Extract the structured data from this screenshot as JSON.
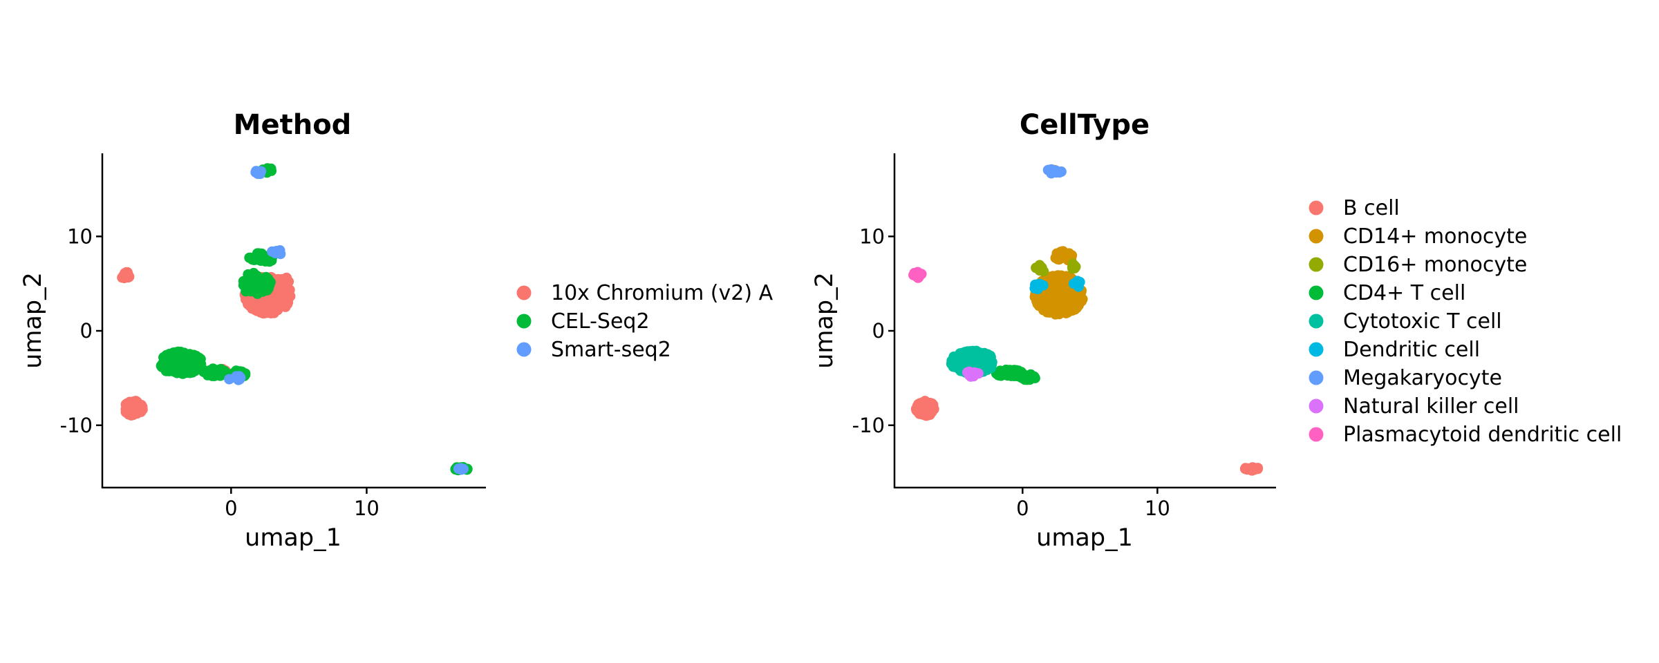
{
  "chart_data": [
    {
      "type": "scatter",
      "title": "Method",
      "xlabel": "umap_1",
      "ylabel": "umap_2",
      "xlim": [
        -9.5,
        18.8
      ],
      "ylim": [
        -16.6,
        18.8
      ],
      "xticks": [
        0,
        10
      ],
      "yticks": [
        -10,
        0,
        10
      ],
      "grid": false,
      "legend_position": "right",
      "series": [
        {
          "name": "10x Chromium (v2) A",
          "color": "#F8766D",
          "clusters": [
            {
              "cx": -7.8,
              "cy": 5.9,
              "rx": 0.35,
              "ry": 0.35,
              "n": 14
            },
            {
              "cx": 2.7,
              "cy": 3.8,
              "rx": 1.7,
              "ry": 2.0,
              "n": 420
            },
            {
              "cx": -7.2,
              "cy": -8.2,
              "rx": 0.7,
              "ry": 0.8,
              "n": 90
            },
            {
              "cx": -3.2,
              "cy": -3.4,
              "rx": 1.0,
              "ry": 0.7,
              "n": 20
            },
            {
              "cx": -0.5,
              "cy": -4.3,
              "rx": 0.5,
              "ry": 0.3,
              "n": 6
            },
            {
              "cx": 3.9,
              "cy": 5.3,
              "rx": 0.4,
              "ry": 0.4,
              "n": 10
            }
          ]
        },
        {
          "name": "CEL-Seq2",
          "color": "#00BA38",
          "clusters": [
            {
              "cx": -3.7,
              "cy": -3.4,
              "rx": 1.6,
              "ry": 1.2,
              "n": 220
            },
            {
              "cx": -1.2,
              "cy": -4.4,
              "rx": 0.9,
              "ry": 0.4,
              "n": 50
            },
            {
              "cx": 0.5,
              "cy": -4.6,
              "rx": 0.6,
              "ry": 0.4,
              "n": 30
            },
            {
              "cx": 2.7,
              "cy": 17.0,
              "rx": 0.4,
              "ry": 0.25,
              "n": 12
            },
            {
              "cx": 2.2,
              "cy": 7.7,
              "rx": 0.9,
              "ry": 0.6,
              "n": 25
            },
            {
              "cx": 17.0,
              "cy": -14.6,
              "rx": 0.5,
              "ry": 0.2,
              "n": 16
            },
            {
              "cx": 1.8,
              "cy": 5.0,
              "rx": 1.2,
              "ry": 1.2,
              "n": 30
            }
          ]
        },
        {
          "name": "Smart-seq2",
          "color": "#619CFF",
          "clusters": [
            {
              "cx": 2.0,
              "cy": 16.8,
              "rx": 0.3,
              "ry": 0.25,
              "n": 8
            },
            {
              "cx": 3.4,
              "cy": 8.3,
              "rx": 0.4,
              "ry": 0.3,
              "n": 8
            },
            {
              "cx": 0.3,
              "cy": -5.0,
              "rx": 0.5,
              "ry": 0.3,
              "n": 8
            },
            {
              "cx": 16.9,
              "cy": -14.7,
              "rx": 0.3,
              "ry": 0.15,
              "n": 4
            }
          ]
        }
      ]
    },
    {
      "type": "scatter",
      "title": "CellType",
      "xlabel": "umap_1",
      "ylabel": "umap_2",
      "xlim": [
        -9.5,
        18.8
      ],
      "ylim": [
        -16.6,
        18.8
      ],
      "xticks": [
        0,
        10
      ],
      "yticks": [
        -10,
        0,
        10
      ],
      "grid": false,
      "legend_position": "right",
      "series": [
        {
          "name": "B cell",
          "color": "#F8766D",
          "clusters": [
            {
              "cx": -7.2,
              "cy": -8.2,
              "rx": 0.7,
              "ry": 0.8,
              "n": 90
            },
            {
              "cx": 17.0,
              "cy": -14.6,
              "rx": 0.5,
              "ry": 0.2,
              "n": 16
            }
          ]
        },
        {
          "name": "CD14+ monocyte",
          "color": "#D39200",
          "clusters": [
            {
              "cx": 2.7,
              "cy": 3.8,
              "rx": 1.8,
              "ry": 2.1,
              "n": 420
            },
            {
              "cx": 3.0,
              "cy": 7.9,
              "rx": 0.7,
              "ry": 0.6,
              "n": 20
            },
            {
              "cx": -3.0,
              "cy": -3.0,
              "rx": 0.6,
              "ry": 0.5,
              "n": 10
            },
            {
              "cx": 2.3,
              "cy": 16.9,
              "rx": 0.2,
              "ry": 0.15,
              "n": 3
            }
          ]
        },
        {
          "name": "CD16+ monocyte",
          "color": "#93AA00",
          "clusters": [
            {
              "cx": 1.3,
              "cy": 6.6,
              "rx": 0.4,
              "ry": 0.4,
              "n": 12
            },
            {
              "cx": 3.8,
              "cy": 6.8,
              "rx": 0.3,
              "ry": 0.3,
              "n": 6
            }
          ]
        },
        {
          "name": "CD4+ T cell",
          "color": "#00BA38",
          "clusters": [
            {
              "cx": -1.0,
              "cy": -4.5,
              "rx": 1.0,
              "ry": 0.4,
              "n": 50
            },
            {
              "cx": 0.4,
              "cy": -4.9,
              "rx": 0.6,
              "ry": 0.3,
              "n": 25
            }
          ]
        },
        {
          "name": "Cytotoxic T cell",
          "color": "#00C19F",
          "clusters": [
            {
              "cx": -3.7,
              "cy": -3.3,
              "rx": 1.6,
              "ry": 1.2,
              "n": 230
            }
          ]
        },
        {
          "name": "Dendritic cell",
          "color": "#00B9E3",
          "clusters": [
            {
              "cx": 1.2,
              "cy": 4.6,
              "rx": 0.4,
              "ry": 0.4,
              "n": 8
            },
            {
              "cx": 4.0,
              "cy": 5.0,
              "rx": 0.3,
              "ry": 0.4,
              "n": 6
            }
          ]
        },
        {
          "name": "Megakaryocyte",
          "color": "#619CFF",
          "clusters": [
            {
              "cx": 2.3,
              "cy": 16.9,
              "rx": 0.6,
              "ry": 0.25,
              "n": 18
            }
          ]
        },
        {
          "name": "Natural killer cell",
          "color": "#DB72FB",
          "clusters": [
            {
              "cx": -3.8,
              "cy": -4.6,
              "rx": 0.6,
              "ry": 0.3,
              "n": 10
            }
          ]
        },
        {
          "name": "Plasmacytoid dendritic cell",
          "color": "#FF61C3",
          "clusters": [
            {
              "cx": -7.8,
              "cy": 5.9,
              "rx": 0.35,
              "ry": 0.35,
              "n": 14
            }
          ]
        }
      ]
    }
  ]
}
